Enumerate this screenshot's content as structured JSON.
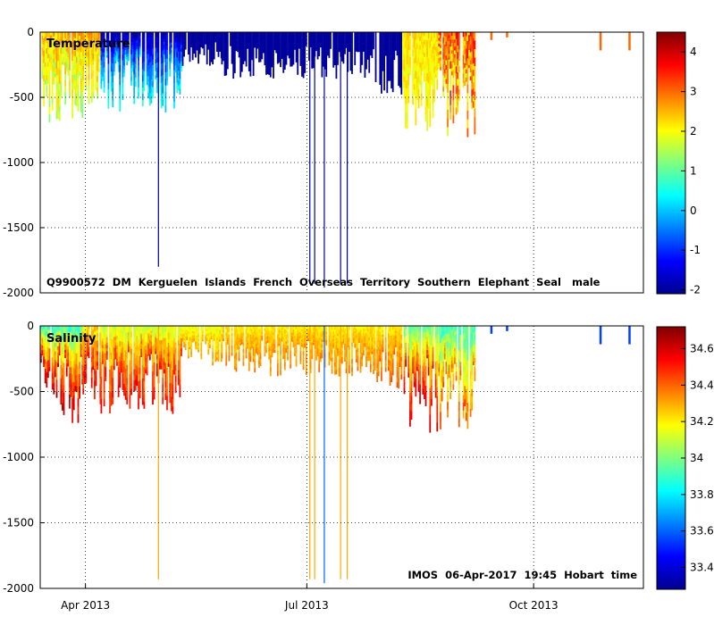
{
  "chart_data": [
    {
      "type": "heatmap",
      "title": "Temperature",
      "annotation": "Q9900572  DM  Kerguelen  Islands  French  Overseas  Territory  Southern  Elephant  Seal   male",
      "ylim": [
        -2000,
        0
      ],
      "yticks": [
        0,
        -500,
        -1000,
        -1500,
        -2000
      ],
      "ytick_labels": [
        "0",
        "-500",
        "-1000",
        "-1500",
        "-2000"
      ],
      "colorbar": {
        "range": [
          -2.1,
          4.5
        ],
        "ticks": [
          -2,
          -1,
          0,
          1,
          2,
          3,
          4
        ],
        "tick_labels": [
          "-2",
          "-1",
          "0",
          "1",
          "2",
          "3",
          "4"
        ]
      },
      "grid": true,
      "profiles": [
        {
          "t0": 0.0,
          "t1": 0.07,
          "depth": 600,
          "v_surface": 2.5,
          "v_deep": 1.6,
          "jitter": 0.5
        },
        {
          "t0": 0.07,
          "t1": 0.1,
          "depth": 500,
          "v_surface": 2.6,
          "v_deep": 1.8,
          "jitter": 0.4
        },
        {
          "t0": 0.1,
          "t1": 0.235,
          "depth": 520,
          "v_surface": -2.0,
          "v_deep": 0.5,
          "jitter": 0.4
        },
        {
          "t0": 0.235,
          "t1": 0.3,
          "depth": 220,
          "v_surface": -2.0,
          "v_deep": -2.0,
          "jitter": 0.0
        },
        {
          "t0": 0.3,
          "t1": 0.555,
          "depth": 300,
          "v_surface": -2.0,
          "v_deep": -2.0,
          "jitter": 0.0
        },
        {
          "t0": 0.555,
          "t1": 0.6,
          "depth": 400,
          "v_surface": -2.0,
          "v_deep": -2.0,
          "jitter": 0.0
        },
        {
          "t0": 0.6,
          "t1": 0.66,
          "depth": 650,
          "v_surface": 2.2,
          "v_deep": 2.0,
          "jitter": 0.3
        },
        {
          "t0": 0.66,
          "t1": 0.72,
          "depth": 680,
          "v_surface": 3.0,
          "v_deep": 2.4,
          "jitter": 0.9
        }
      ],
      "spikes": [
        {
          "t": 0.196,
          "depth": 1800,
          "value": -2.0
        },
        {
          "t": 0.447,
          "depth": 1930,
          "value": -2.0
        },
        {
          "t": 0.455,
          "depth": 1930,
          "value": -2.0
        },
        {
          "t": 0.471,
          "depth": 1960,
          "value": -2.0
        },
        {
          "t": 0.498,
          "depth": 1930,
          "value": -2.0
        },
        {
          "t": 0.509,
          "depth": 1930,
          "value": -2.0
        }
      ],
      "late_marks": [
        {
          "t": 0.748,
          "depth": 60,
          "value": 3.0
        },
        {
          "t": 0.774,
          "depth": 40,
          "value": 3.0
        },
        {
          "t": 0.929,
          "depth": 140,
          "value": 3.0
        },
        {
          "t": 0.977,
          "depth": 140,
          "value": 3.0
        }
      ]
    },
    {
      "type": "heatmap",
      "title": "Salinity",
      "annotation": "IMOS  06-Apr-2017  19:45  Hobart  time",
      "ylim": [
        -2000,
        0
      ],
      "yticks": [
        0,
        -500,
        -1000,
        -1500,
        -2000
      ],
      "ytick_labels": [
        "0",
        "-500",
        "-1000",
        "-1500",
        "-2000"
      ],
      "xtick_labels": [
        "Apr 2013",
        "Jul 2013",
        "Oct 2013"
      ],
      "xticks_frac": [
        0.075,
        0.442,
        0.818
      ],
      "colorbar": {
        "range": [
          33.28,
          34.72
        ],
        "ticks": [
          33.4,
          33.6,
          33.8,
          34,
          34.2,
          34.4,
          34.6
        ],
        "tick_labels": [
          "33.4",
          "33.6",
          "33.8",
          "34",
          "34.2",
          "34.4",
          "34.6"
        ]
      },
      "grid": true,
      "profiles": [
        {
          "t0": 0.0,
          "t1": 0.07,
          "depth": 620,
          "v_surface": 33.9,
          "v_deep": 34.65,
          "jitter": 0.1
        },
        {
          "t0": 0.07,
          "t1": 0.1,
          "depth": 500,
          "v_surface": 34.2,
          "v_deep": 34.55,
          "jitter": 0.08
        },
        {
          "t0": 0.1,
          "t1": 0.235,
          "depth": 560,
          "v_surface": 34.1,
          "v_deep": 34.55,
          "jitter": 0.08
        },
        {
          "t0": 0.235,
          "t1": 0.3,
          "depth": 260,
          "v_surface": 34.15,
          "v_deep": 34.3,
          "jitter": 0.05
        },
        {
          "t0": 0.3,
          "t1": 0.555,
          "depth": 320,
          "v_surface": 34.2,
          "v_deep": 34.35,
          "jitter": 0.05
        },
        {
          "t0": 0.555,
          "t1": 0.6,
          "depth": 420,
          "v_surface": 34.2,
          "v_deep": 34.4,
          "jitter": 0.05
        },
        {
          "t0": 0.6,
          "t1": 0.66,
          "depth": 680,
          "v_surface": 33.95,
          "v_deep": 34.6,
          "jitter": 0.06
        },
        {
          "t0": 0.66,
          "t1": 0.72,
          "depth": 700,
          "v_surface": 33.9,
          "v_deep": 34.4,
          "jitter": 0.1
        }
      ],
      "spikes": [
        {
          "t": 0.196,
          "depth": 1930,
          "value": 34.3
        },
        {
          "t": 0.447,
          "depth": 1930,
          "value": 34.3
        },
        {
          "t": 0.455,
          "depth": 1930,
          "value": 34.3
        },
        {
          "t": 0.471,
          "depth": 1960,
          "value": 33.6
        },
        {
          "t": 0.498,
          "depth": 1930,
          "value": 34.3
        },
        {
          "t": 0.509,
          "depth": 1930,
          "value": 34.3
        }
      ],
      "late_marks": [
        {
          "t": 0.748,
          "depth": 60,
          "value": 33.55
        },
        {
          "t": 0.774,
          "depth": 40,
          "value": 33.55
        },
        {
          "t": 0.929,
          "depth": 140,
          "value": 33.55
        },
        {
          "t": 0.977,
          "depth": 140,
          "value": 33.55
        }
      ]
    }
  ]
}
